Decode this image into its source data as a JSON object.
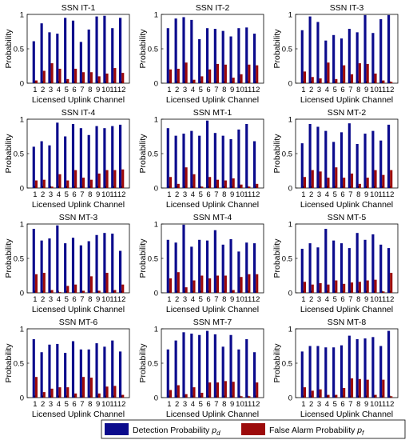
{
  "colors": {
    "detection": "#0a0a8c",
    "false_alarm": "#9c0a0a"
  },
  "legend": {
    "detection_label": "Detection Probability",
    "detection_symbol": "p",
    "detection_sub": "d",
    "false_alarm_label": "False Alarm Probability",
    "false_alarm_symbol": "p",
    "false_alarm_sub": "f"
  },
  "chart_data": [
    {
      "type": "bar",
      "title": "SSN IT-1",
      "xlabel": "Licensed Uplink Channel",
      "ylabel": "Probability",
      "ylim": [
        0,
        1
      ],
      "yticks": [
        "0",
        "0.5",
        "1"
      ],
      "categories": [
        "1",
        "2",
        "3",
        "4",
        "5",
        "6",
        "7",
        "8",
        "9",
        "10",
        "11",
        "12"
      ],
      "series": [
        {
          "name": "Detection Probability",
          "values": [
            0.61,
            0.87,
            0.74,
            0.72,
            0.95,
            0.91,
            0.6,
            0.78,
            0.97,
            0.98,
            0.8,
            0.95
          ]
        },
        {
          "name": "False Alarm Probability",
          "values": [
            0.04,
            0.18,
            0.29,
            0.21,
            0.06,
            0.21,
            0.16,
            0.16,
            0.1,
            0.14,
            0.22,
            0.15
          ]
        }
      ]
    },
    {
      "type": "bar",
      "title": "SSN IT-2",
      "xlabel": "Licensed Uplink Channel",
      "ylabel": "Probability",
      "ylim": [
        0,
        1
      ],
      "yticks": [
        "0",
        "0.5",
        "1"
      ],
      "categories": [
        "1",
        "2",
        "3",
        "4",
        "5",
        "6",
        "7",
        "8",
        "9",
        "10",
        "11",
        "12"
      ],
      "series": [
        {
          "name": "Detection Probability",
          "values": [
            0.8,
            0.94,
            0.96,
            0.92,
            0.64,
            0.8,
            0.79,
            0.76,
            0.68,
            0.8,
            0.81,
            0.72
          ]
        },
        {
          "name": "False Alarm Probability",
          "values": [
            0.2,
            0.21,
            0.3,
            0.05,
            0.1,
            0.2,
            0.28,
            0.27,
            0.08,
            0.13,
            0.27,
            0.26
          ]
        }
      ]
    },
    {
      "type": "bar",
      "title": "SSN IT-3",
      "xlabel": "Licensed Uplink Channel",
      "ylabel": "Probability",
      "ylim": [
        0,
        1
      ],
      "yticks": [
        "0",
        "0.5",
        "1"
      ],
      "categories": [
        "1",
        "2",
        "3",
        "4",
        "5",
        "6",
        "7",
        "8",
        "9",
        "10",
        "11",
        "12"
      ],
      "series": [
        {
          "name": "Detection Probability",
          "values": [
            0.77,
            0.97,
            0.89,
            0.62,
            0.7,
            0.65,
            0.79,
            0.74,
            0.99,
            0.73,
            0.93,
            0.99
          ]
        },
        {
          "name": "False Alarm Probability",
          "values": [
            0.17,
            0.09,
            0.07,
            0.3,
            0.06,
            0.26,
            0.13,
            0.29,
            0.28,
            0.14,
            0.04,
            0.02
          ]
        }
      ]
    },
    {
      "type": "bar",
      "title": "SSN IT-4",
      "xlabel": "Licensed Uplink Channel",
      "ylabel": "Probability",
      "ylim": [
        0,
        1
      ],
      "yticks": [
        "0",
        "0.5",
        "1"
      ],
      "categories": [
        "1",
        "2",
        "3",
        "4",
        "5",
        "6",
        "7",
        "8",
        "9",
        "10",
        "11",
        "12"
      ],
      "series": [
        {
          "name": "Detection Probability",
          "values": [
            0.6,
            0.68,
            0.62,
            0.95,
            0.75,
            0.93,
            0.87,
            0.77,
            0.9,
            0.87,
            0.9,
            0.92
          ]
        },
        {
          "name": "False Alarm Probability",
          "values": [
            0.11,
            0.12,
            0.02,
            0.2,
            0.11,
            0.26,
            0.15,
            0.12,
            0.21,
            0.26,
            0.26,
            0.27
          ]
        }
      ]
    },
    {
      "type": "bar",
      "title": "SSN MT-1",
      "xlabel": "Licensed Uplink Channel",
      "ylabel": "Probability",
      "ylim": [
        0,
        1
      ],
      "yticks": [
        "0",
        "0.5",
        "1"
      ],
      "categories": [
        "1",
        "2",
        "3",
        "4",
        "5",
        "6",
        "7",
        "8",
        "9",
        "10",
        "11",
        "12"
      ],
      "series": [
        {
          "name": "Detection Probability",
          "values": [
            0.87,
            0.76,
            0.79,
            0.83,
            0.76,
            0.98,
            0.8,
            0.76,
            0.71,
            0.85,
            0.93,
            0.68
          ]
        },
        {
          "name": "False Alarm Probability",
          "values": [
            0.16,
            0.06,
            0.3,
            0.2,
            0.02,
            0.16,
            0.12,
            0.11,
            0.14,
            0.05,
            0.02,
            0.06
          ]
        }
      ]
    },
    {
      "type": "bar",
      "title": "SSN MT-2",
      "xlabel": "Licensed Uplink Channel",
      "ylabel": "Probability",
      "ylim": [
        0,
        1
      ],
      "yticks": [
        "0",
        "0.5",
        "1"
      ],
      "categories": [
        "1",
        "2",
        "3",
        "4",
        "5",
        "6",
        "7",
        "8",
        "9",
        "10",
        "11",
        "12"
      ],
      "series": [
        {
          "name": "Detection Probability",
          "values": [
            0.65,
            0.93,
            0.89,
            0.83,
            0.67,
            0.81,
            0.94,
            0.64,
            0.79,
            0.83,
            0.69,
            0.92
          ]
        },
        {
          "name": "False Alarm Probability",
          "values": [
            0.16,
            0.26,
            0.24,
            0.15,
            0.3,
            0.15,
            0.21,
            0.06,
            0.15,
            0.26,
            0.19,
            0.26
          ]
        }
      ]
    },
    {
      "type": "bar",
      "title": "SSN MT-3",
      "xlabel": "Licensed Uplink Channel",
      "ylabel": "Probability",
      "ylim": [
        0,
        1
      ],
      "yticks": [
        "0",
        "0.5",
        "1"
      ],
      "categories": [
        "1",
        "2",
        "3",
        "4",
        "5",
        "6",
        "7",
        "8",
        "9",
        "10",
        "11",
        "12"
      ],
      "series": [
        {
          "name": "Detection Probability",
          "values": [
            0.93,
            0.76,
            0.79,
            0.98,
            0.72,
            0.8,
            0.69,
            0.75,
            0.84,
            0.87,
            0.86,
            0.61
          ]
        },
        {
          "name": "False Alarm Probability",
          "values": [
            0.27,
            0.29,
            0.04,
            0.01,
            0.1,
            0.12,
            0.03,
            0.24,
            0.03,
            0.29,
            0.04,
            0.12
          ]
        }
      ]
    },
    {
      "type": "bar",
      "title": "SSN MT-4",
      "xlabel": "Licensed Uplink Channel",
      "ylabel": "Probability",
      "ylim": [
        0,
        1
      ],
      "yticks": [
        "0",
        "0.5",
        "1"
      ],
      "categories": [
        "1",
        "2",
        "3",
        "4",
        "5",
        "6",
        "7",
        "8",
        "9",
        "10",
        "11",
        "12"
      ],
      "series": [
        {
          "name": "Detection Probability",
          "values": [
            0.77,
            0.73,
            0.99,
            0.67,
            0.77,
            0.76,
            0.91,
            0.7,
            0.78,
            0.6,
            0.73,
            0.72
          ]
        },
        {
          "name": "False Alarm Probability",
          "values": [
            0.21,
            0.3,
            0.08,
            0.18,
            0.25,
            0.21,
            0.25,
            0.25,
            0.04,
            0.23,
            0.27,
            0.27
          ]
        }
      ]
    },
    {
      "type": "bar",
      "title": "SSN MT-5",
      "xlabel": "Licensed Uplink Channel",
      "ylabel": "Probability",
      "ylim": [
        0,
        1
      ],
      "yticks": [
        "0",
        "0.5",
        "1"
      ],
      "categories": [
        "1",
        "2",
        "3",
        "4",
        "5",
        "6",
        "7",
        "8",
        "9",
        "10",
        "11",
        "12"
      ],
      "series": [
        {
          "name": "Detection Probability",
          "values": [
            0.64,
            0.72,
            0.66,
            0.93,
            0.76,
            0.72,
            0.65,
            0.87,
            0.77,
            0.85,
            0.7,
            0.65
          ]
        },
        {
          "name": "False Alarm Probability",
          "values": [
            0.16,
            0.12,
            0.14,
            0.12,
            0.18,
            0.13,
            0.15,
            0.16,
            0.18,
            0.19,
            0.02,
            0.29
          ]
        }
      ]
    },
    {
      "type": "bar",
      "title": "SSN MT-6",
      "xlabel": "Licensed Uplink Channel",
      "ylabel": "Probability",
      "ylim": [
        0,
        1
      ],
      "yticks": [
        "0",
        "0.5",
        "1"
      ],
      "categories": [
        "1",
        "2",
        "3",
        "4",
        "5",
        "6",
        "7",
        "8",
        "9",
        "10",
        "11",
        "12"
      ],
      "series": [
        {
          "name": "Detection Probability",
          "values": [
            0.85,
            0.66,
            0.77,
            0.78,
            0.65,
            0.82,
            0.7,
            0.7,
            0.79,
            0.74,
            0.83,
            0.67
          ]
        },
        {
          "name": "False Alarm Probability",
          "values": [
            0.3,
            0.08,
            0.13,
            0.15,
            0.15,
            0.06,
            0.3,
            0.29,
            0.06,
            0.16,
            0.17,
            0.04
          ]
        }
      ]
    },
    {
      "type": "bar",
      "title": "SSN MT-7",
      "xlabel": "Licensed Uplink Channel",
      "ylabel": "Probability",
      "ylim": [
        0,
        1
      ],
      "yticks": [
        "0",
        "0.5",
        "1"
      ],
      "categories": [
        "1",
        "2",
        "3",
        "4",
        "5",
        "6",
        "7",
        "8",
        "9",
        "10",
        "11",
        "12"
      ],
      "series": [
        {
          "name": "Detection Probability",
          "values": [
            0.7,
            0.83,
            0.95,
            0.93,
            0.91,
            0.97,
            0.92,
            0.74,
            0.91,
            0.7,
            0.85,
            0.66
          ]
        },
        {
          "name": "False Alarm Probability",
          "values": [
            0.11,
            0.18,
            0.05,
            0.15,
            0.07,
            0.22,
            0.22,
            0.24,
            0.23,
            0.02,
            0.02,
            0.22
          ]
        }
      ]
    },
    {
      "type": "bar",
      "title": "SSN MT-8",
      "xlabel": "Licensed Uplink Channel",
      "ylabel": "Probability",
      "ylim": [
        0,
        1
      ],
      "yticks": [
        "0",
        "0.5",
        "1"
      ],
      "categories": [
        "1",
        "2",
        "3",
        "4",
        "5",
        "6",
        "7",
        "8",
        "9",
        "10",
        "11",
        "12"
      ],
      "series": [
        {
          "name": "Detection Probability",
          "values": [
            0.67,
            0.75,
            0.75,
            0.73,
            0.73,
            0.76,
            0.9,
            0.85,
            0.86,
            0.88,
            0.75,
            0.97
          ]
        },
        {
          "name": "False Alarm Probability",
          "values": [
            0.15,
            0.1,
            0.12,
            0.04,
            0.04,
            0.14,
            0.28,
            0.27,
            0.26,
            0.04,
            0.26,
            0.02
          ]
        }
      ]
    }
  ]
}
